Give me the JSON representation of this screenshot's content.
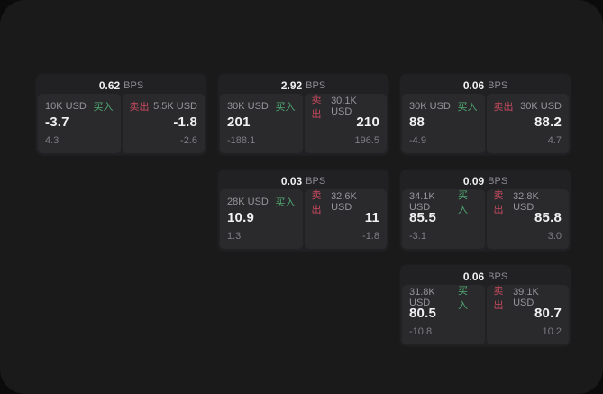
{
  "labels": {
    "bps_unit": "BPS",
    "buy": "买入",
    "sell": "卖出"
  },
  "colors": {
    "backdrop": "#0b0b0c",
    "window_bg": "#1a1a1b",
    "card_bg": "#212124",
    "panel_bg": "#2a2a2c",
    "buy_green": "#4fa873",
    "sell_red": "#c74a5f",
    "value_white": "#f1f1f3",
    "muted_gray": "#95969b",
    "dim_gray": "#7d7e83"
  },
  "cards": [
    {
      "col": 1,
      "row": 1,
      "bps": "0.62",
      "buy": {
        "size": "10K USD",
        "price": "-3.7",
        "delta": "4.3"
      },
      "sell": {
        "size": "5.5K USD",
        "price": "-1.8",
        "delta": "-2.6"
      }
    },
    {
      "col": 2,
      "row": 1,
      "bps": "2.92",
      "buy": {
        "size": "30K USD",
        "price": "201",
        "delta": "-188.1"
      },
      "sell": {
        "size": "30.1K USD",
        "price": "210",
        "delta": "196.5"
      }
    },
    {
      "col": 3,
      "row": 1,
      "bps": "0.06",
      "buy": {
        "size": "30K USD",
        "price": "88",
        "delta": "-4.9"
      },
      "sell": {
        "size": "30K USD",
        "price": "88.2",
        "delta": "4.7"
      }
    },
    {
      "col": 2,
      "row": 2,
      "bps": "0.03",
      "buy": {
        "size": "28K USD",
        "price": "10.9",
        "delta": "1.3"
      },
      "sell": {
        "size": "32.6K USD",
        "price": "11",
        "delta": "-1.8"
      }
    },
    {
      "col": 3,
      "row": 2,
      "bps": "0.09",
      "buy": {
        "size": "34.1K USD",
        "price": "85.5",
        "delta": "-3.1"
      },
      "sell": {
        "size": "32.8K USD",
        "price": "85.8",
        "delta": "3.0"
      }
    },
    {
      "col": 3,
      "row": 3,
      "bps": "0.06",
      "buy": {
        "size": "31.8K USD",
        "price": "80.5",
        "delta": "-10.8"
      },
      "sell": {
        "size": "39.1K USD",
        "price": "80.7",
        "delta": "10.2"
      }
    }
  ]
}
